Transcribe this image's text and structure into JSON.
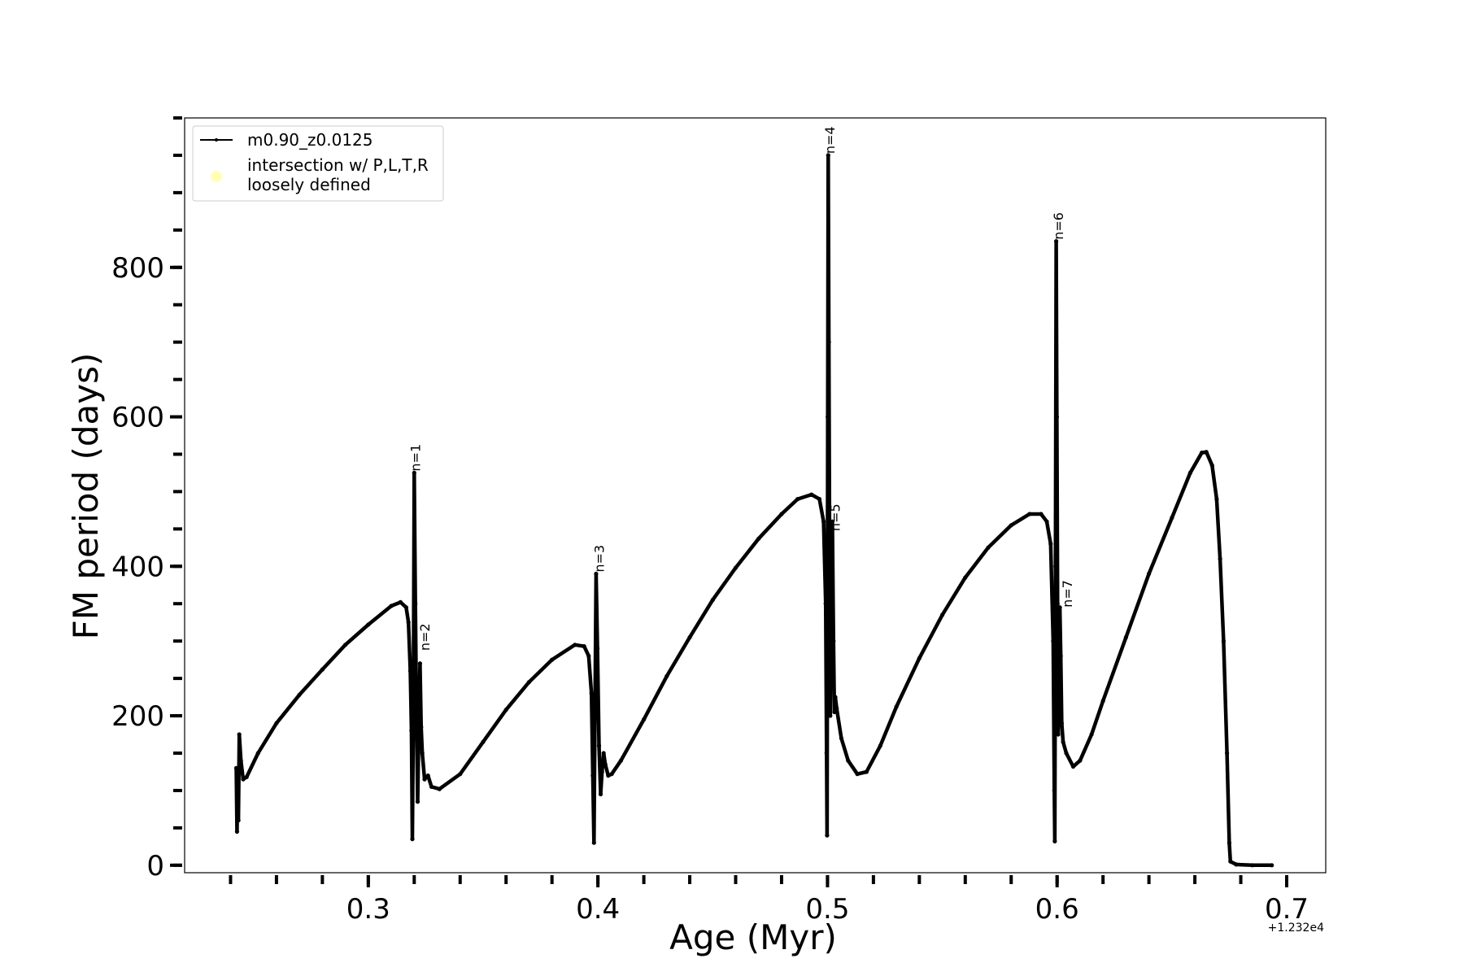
{
  "chart_data": {
    "type": "line",
    "title": "",
    "xlabel": "Age (Myr)",
    "ylabel": "FM period (days)",
    "x_offset_label": "+1.232e4",
    "xlim": [
      0.22,
      0.717
    ],
    "ylim": [
      -10,
      1000
    ],
    "x_ticks": [
      {
        "value": 0.3,
        "label": "0.3"
      },
      {
        "value": 0.4,
        "label": "0.4"
      },
      {
        "value": 0.5,
        "label": "0.5"
      },
      {
        "value": 0.6,
        "label": "0.6"
      },
      {
        "value": 0.7,
        "label": "0.7"
      }
    ],
    "y_ticks": [
      {
        "value": 0,
        "label": "0"
      },
      {
        "value": 200,
        "label": "200"
      },
      {
        "value": 400,
        "label": "400"
      },
      {
        "value": 600,
        "label": "600"
      },
      {
        "value": 800,
        "label": "800"
      }
    ],
    "grid": false,
    "legend_position": "top-left",
    "legend": [
      {
        "label": "m0.90_z0.0125",
        "marker": "line",
        "color": "#000000"
      },
      {
        "label_lines": [
          "intersection w/ P,L,T,R",
          "loosely defined"
        ],
        "marker": "circle",
        "color": "#ffffb3"
      }
    ],
    "series": [
      {
        "name": "m0.90_z0.0125",
        "color": "#000000",
        "points": [
          [
            0.2425,
            130
          ],
          [
            0.2428,
            45
          ],
          [
            0.2431,
            100
          ],
          [
            0.2434,
            60
          ],
          [
            0.2438,
            175
          ],
          [
            0.2445,
            140
          ],
          [
            0.2455,
            115
          ],
          [
            0.247,
            118
          ],
          [
            0.252,
            150
          ],
          [
            0.26,
            190
          ],
          [
            0.27,
            228
          ],
          [
            0.28,
            262
          ],
          [
            0.29,
            295
          ],
          [
            0.3,
            322
          ],
          [
            0.31,
            347
          ],
          [
            0.314,
            352
          ],
          [
            0.3165,
            345
          ],
          [
            0.3175,
            325
          ],
          [
            0.3183,
            260
          ],
          [
            0.3188,
            180
          ],
          [
            0.3192,
            35
          ],
          [
            0.3196,
            200
          ],
          [
            0.32,
            525
          ],
          [
            0.3205,
            350
          ],
          [
            0.321,
            200
          ],
          [
            0.3215,
            85
          ],
          [
            0.322,
            180
          ],
          [
            0.3225,
            270
          ],
          [
            0.323,
            185
          ],
          [
            0.3235,
            150
          ],
          [
            0.3245,
            115
          ],
          [
            0.326,
            120
          ],
          [
            0.3275,
            105
          ],
          [
            0.331,
            102
          ],
          [
            0.34,
            122
          ],
          [
            0.35,
            165
          ],
          [
            0.36,
            208
          ],
          [
            0.37,
            245
          ],
          [
            0.38,
            275
          ],
          [
            0.39,
            295
          ],
          [
            0.394,
            293
          ],
          [
            0.396,
            280
          ],
          [
            0.3972,
            230
          ],
          [
            0.3978,
            120
          ],
          [
            0.3983,
            30
          ],
          [
            0.3987,
            200
          ],
          [
            0.3992,
            390
          ],
          [
            0.3998,
            290
          ],
          [
            0.4005,
            160
          ],
          [
            0.4012,
            95
          ],
          [
            0.4018,
            125
          ],
          [
            0.4025,
            150
          ],
          [
            0.4032,
            135
          ],
          [
            0.4045,
            120
          ],
          [
            0.406,
            122
          ],
          [
            0.41,
            140
          ],
          [
            0.42,
            195
          ],
          [
            0.43,
            253
          ],
          [
            0.44,
            305
          ],
          [
            0.45,
            355
          ],
          [
            0.46,
            398
          ],
          [
            0.47,
            437
          ],
          [
            0.48,
            470
          ],
          [
            0.487,
            490
          ],
          [
            0.493,
            496
          ],
          [
            0.4965,
            490
          ],
          [
            0.4983,
            460
          ],
          [
            0.4992,
            350
          ],
          [
            0.4996,
            150
          ],
          [
            0.4998,
            40
          ],
          [
            0.5001,
            600
          ],
          [
            0.5003,
            950
          ],
          [
            0.5006,
            700
          ],
          [
            0.5009,
            420
          ],
          [
            0.5012,
            200
          ],
          [
            0.5016,
            350
          ],
          [
            0.5021,
            460
          ],
          [
            0.5026,
            300
          ],
          [
            0.503,
            205
          ],
          [
            0.5034,
            225
          ],
          [
            0.504,
            210
          ],
          [
            0.506,
            170
          ],
          [
            0.509,
            140
          ],
          [
            0.513,
            122
          ],
          [
            0.517,
            125
          ],
          [
            0.523,
            160
          ],
          [
            0.53,
            212
          ],
          [
            0.54,
            277
          ],
          [
            0.55,
            335
          ],
          [
            0.56,
            385
          ],
          [
            0.57,
            425
          ],
          [
            0.58,
            455
          ],
          [
            0.588,
            470
          ],
          [
            0.593,
            470
          ],
          [
            0.5955,
            460
          ],
          [
            0.5972,
            430
          ],
          [
            0.5983,
            300
          ],
          [
            0.5988,
            100
          ],
          [
            0.599,
            32
          ],
          [
            0.5993,
            400
          ],
          [
            0.5996,
            835
          ],
          [
            0.5999,
            600
          ],
          [
            0.6002,
            350
          ],
          [
            0.6005,
            175
          ],
          [
            0.6008,
            300
          ],
          [
            0.6012,
            345
          ],
          [
            0.6016,
            280
          ],
          [
            0.602,
            190
          ],
          [
            0.6026,
            165
          ],
          [
            0.604,
            150
          ],
          [
            0.607,
            132
          ],
          [
            0.61,
            140
          ],
          [
            0.615,
            175
          ],
          [
            0.62,
            220
          ],
          [
            0.63,
            305
          ],
          [
            0.64,
            390
          ],
          [
            0.65,
            465
          ],
          [
            0.658,
            525
          ],
          [
            0.663,
            552
          ],
          [
            0.665,
            553
          ],
          [
            0.6675,
            535
          ],
          [
            0.6695,
            490
          ],
          [
            0.671,
            410
          ],
          [
            0.6725,
            300
          ],
          [
            0.674,
            150
          ],
          [
            0.675,
            30
          ],
          [
            0.6755,
            5
          ],
          [
            0.678,
            1
          ],
          [
            0.685,
            0
          ],
          [
            0.6935,
            0
          ]
        ]
      }
    ],
    "annotations": [
      {
        "text": "n=1",
        "x": 0.3205,
        "y": 527
      },
      {
        "text": "n=2",
        "x": 0.3245,
        "y": 287
      },
      {
        "text": "n=3",
        "x": 0.4005,
        "y": 392
      },
      {
        "text": "n=4",
        "x": 0.5009,
        "y": 952
      },
      {
        "text": "n=5",
        "x": 0.5033,
        "y": 447
      },
      {
        "text": "n=6",
        "x": 0.6004,
        "y": 837
      },
      {
        "text": "n=7",
        "x": 0.6044,
        "y": 345
      }
    ]
  }
}
